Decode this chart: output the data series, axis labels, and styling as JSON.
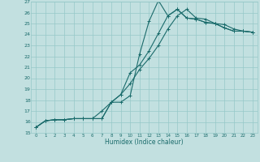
{
  "xlabel": "Humidex (Indice chaleur)",
  "xlim": [
    -0.5,
    23.5
  ],
  "ylim": [
    15,
    27
  ],
  "xticks": [
    0,
    1,
    2,
    3,
    4,
    5,
    6,
    7,
    8,
    9,
    10,
    11,
    12,
    13,
    14,
    15,
    16,
    17,
    18,
    19,
    20,
    21,
    22,
    23
  ],
  "yticks": [
    15,
    16,
    17,
    18,
    19,
    20,
    21,
    22,
    23,
    24,
    25,
    26,
    27
  ],
  "bg_color": "#c2e0e0",
  "grid_color": "#96c8c8",
  "line_color": "#1a6b6b",
  "line1_x": [
    0,
    1,
    2,
    3,
    4,
    5,
    6,
    7,
    8,
    9,
    10,
    11,
    12,
    13,
    14,
    15,
    16,
    17,
    18,
    19,
    20,
    21,
    22,
    23
  ],
  "line1_y": [
    15.5,
    16.1,
    16.2,
    16.2,
    16.3,
    16.3,
    16.3,
    17.0,
    17.8,
    17.8,
    18.4,
    22.2,
    25.2,
    27.1,
    25.7,
    26.3,
    25.5,
    25.4,
    25.1,
    25.0,
    24.6,
    24.3,
    24.3,
    24.2
  ],
  "line2_x": [
    0,
    1,
    2,
    3,
    4,
    5,
    6,
    7,
    8,
    9,
    10,
    11,
    12,
    13,
    14,
    15,
    16,
    17,
    18,
    19,
    20,
    21,
    22,
    23
  ],
  "line2_y": [
    15.5,
    16.1,
    16.2,
    16.2,
    16.3,
    16.3,
    16.3,
    16.3,
    17.8,
    18.5,
    20.5,
    21.2,
    22.5,
    24.1,
    25.7,
    26.3,
    25.5,
    25.4,
    25.1,
    25.0,
    24.6,
    24.3,
    24.3,
    24.2
  ],
  "line3_x": [
    0,
    1,
    2,
    3,
    4,
    5,
    6,
    7,
    8,
    9,
    10,
    11,
    12,
    13,
    14,
    15,
    16,
    17,
    18,
    19,
    20,
    21,
    22,
    23
  ],
  "line3_y": [
    15.5,
    16.1,
    16.2,
    16.2,
    16.3,
    16.3,
    16.3,
    16.3,
    17.8,
    18.5,
    19.5,
    20.8,
    21.8,
    23.0,
    24.5,
    25.7,
    26.3,
    25.5,
    25.4,
    25.0,
    24.9,
    24.5,
    24.3,
    24.2
  ]
}
